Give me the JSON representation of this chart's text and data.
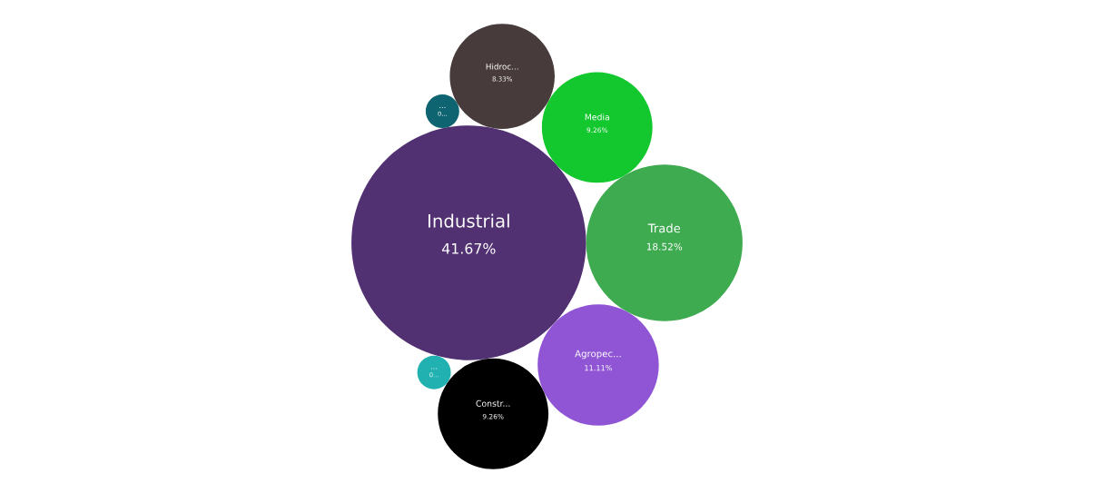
{
  "chart_data": {
    "type": "other",
    "categories": [
      "Industrial",
      "Trade",
      "Agropec...",
      "Media",
      "Constr...",
      "Hidroc...",
      "...",
      "..."
    ],
    "values": [
      41.67,
      18.52,
      11.11,
      9.26,
      9.26,
      8.33,
      null,
      null
    ],
    "value_labels": [
      "41.67%",
      "18.52%",
      "11.11%",
      "9.26%",
      "9.26%",
      "8.33%",
      "0...",
      "0..."
    ],
    "colors": [
      "#523173",
      "#3fab50",
      "#8f55d4",
      "#13c72e",
      "#000000",
      "#473c3b",
      "#0e6470",
      "#21b1b0"
    ],
    "data_labels": true
  }
}
